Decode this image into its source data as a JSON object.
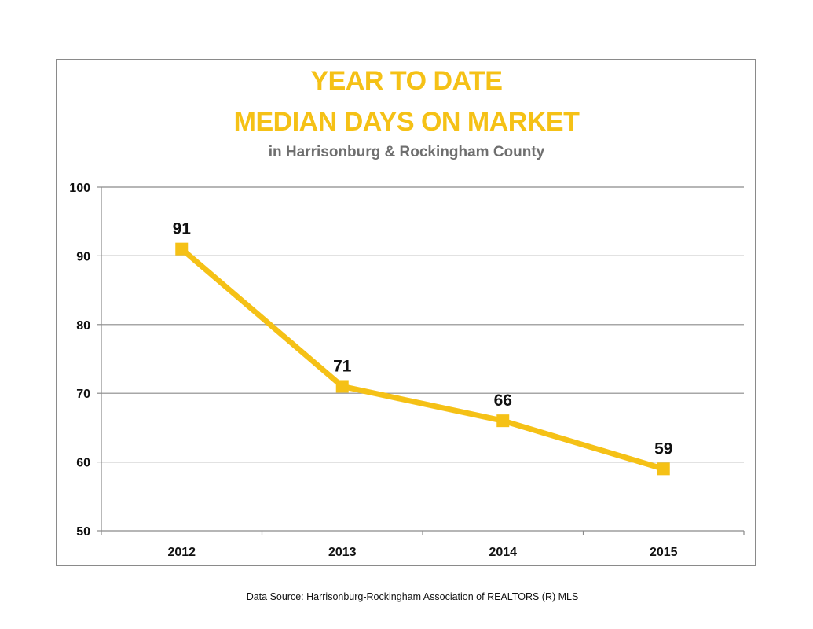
{
  "chart_data": {
    "type": "line",
    "title_lines": [
      "YEAR TO DATE",
      "MEDIAN DAYS ON MARKET"
    ],
    "subtitle": "in Harrisonburg  & Rockingham County",
    "categories": [
      "2012",
      "2013",
      "2014",
      "2015"
    ],
    "values": [
      91,
      71,
      66,
      59
    ],
    "data_labels": [
      "91",
      "71",
      "66",
      "59"
    ],
    "ylim": [
      50,
      100
    ],
    "yticks": [
      50,
      60,
      70,
      80,
      90,
      100
    ],
    "xlabel": "",
    "ylabel": "",
    "grid": true,
    "legend": "none",
    "line_color": "#f5c116",
    "marker": "square"
  },
  "footer": {
    "source": "Data Source: Harrisonburg-Rockingham Association of REALTORS (R) MLS"
  },
  "colors": {
    "title": "#f5c116",
    "subtitle": "#6f6f6f",
    "gridline": "#8a8a8a",
    "frame": "#8a8a8a"
  }
}
